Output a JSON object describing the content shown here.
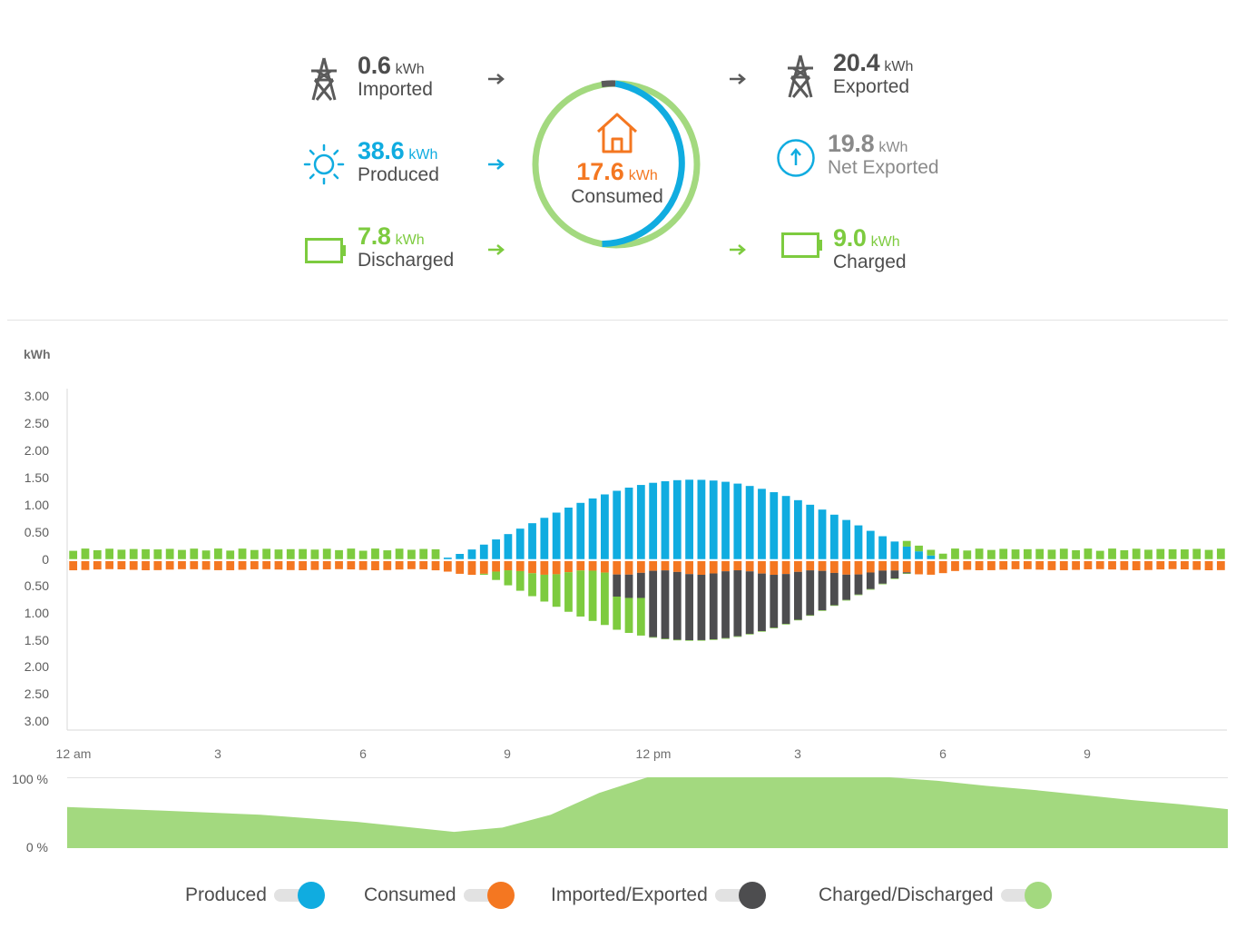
{
  "summary": {
    "imported": {
      "value": "0.6",
      "unit": "kWh",
      "label": "Imported"
    },
    "produced": {
      "value": "38.6",
      "unit": "kWh",
      "label": "Produced"
    },
    "discharged": {
      "value": "7.8",
      "unit": "kWh",
      "label": "Discharged"
    },
    "consumed": {
      "value": "17.6",
      "unit": "kWh",
      "label": "Consumed"
    },
    "exported": {
      "value": "20.4",
      "unit": "kWh",
      "label": "Exported"
    },
    "net_exported": {
      "value": "19.8",
      "unit": "kWh",
      "label": "Net Exported"
    },
    "charged": {
      "value": "9.0",
      "unit": "kWh",
      "label": "Charged"
    }
  },
  "colors": {
    "produced": "#10ace0",
    "consumed": "#f47721",
    "grid": "#4d4d4f",
    "battery": "#7dcb3f",
    "battery_light": "#a3d97f",
    "text": "#4d4d4d",
    "muted": "#8a8a8a"
  },
  "icons": {
    "imported": "power-tower-icon",
    "produced": "sun-icon",
    "discharged": "battery-icon",
    "consumed": "house-icon",
    "exported": "power-tower-icon",
    "net_exported": "up-arrow-circle-icon",
    "charged": "battery-icon"
  },
  "chart": {
    "unit_label": "kWh",
    "y_ticks": [
      "3.00",
      "2.50",
      "2.00",
      "1.50",
      "1.00",
      "0.50",
      "0",
      "0.50",
      "1.00",
      "1.50",
      "2.00",
      "2.50",
      "3.00"
    ],
    "x_ticks": [
      "12 am",
      "3",
      "6",
      "9",
      "12 pm",
      "3",
      "6",
      "9"
    ],
    "soc_ticks": [
      "100 %",
      "0 %"
    ]
  },
  "chart_data": {
    "type": "bar",
    "interval": "15 min",
    "ylim": [
      -3,
      3
    ],
    "produced_profile": {
      "start_hour": 7.7,
      "end_hour": 18.2,
      "peak_kwh": 1.4,
      "peak_hour": 13.0
    },
    "baseline_consumption_kwh": 0.15,
    "battery_soc": {
      "x_hours": [
        0,
        2,
        4,
        6,
        7,
        8,
        9,
        10,
        11,
        12,
        13,
        14,
        15,
        16,
        17,
        18,
        19,
        20,
        21,
        22,
        23,
        24
      ],
      "percent": [
        58,
        53,
        47,
        37,
        30,
        23,
        29,
        47,
        78,
        100,
        100,
        100,
        100,
        100,
        100,
        95,
        88,
        82,
        75,
        68,
        62,
        55
      ]
    }
  },
  "legend": [
    {
      "label": "Produced",
      "color": "#10ace0"
    },
    {
      "label": "Consumed",
      "color": "#f47721"
    },
    {
      "label": "Imported/Exported",
      "color": "#4d4d4f"
    },
    {
      "label": "Charged/Discharged",
      "color": "#a3d97f"
    }
  ]
}
